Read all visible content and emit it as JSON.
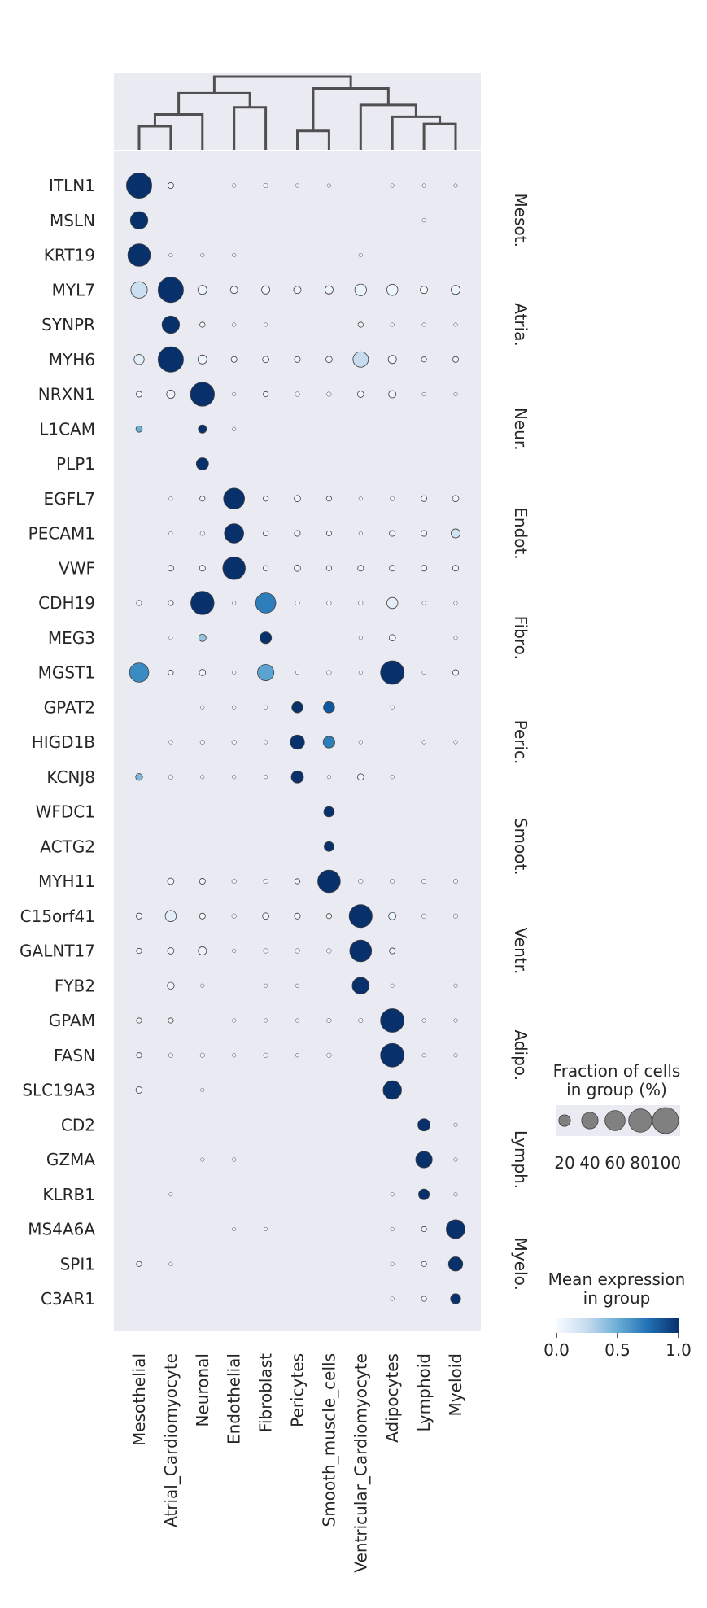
{
  "chart_data": {
    "type": "dotplot",
    "groups": [
      "Mesothelial",
      "Atrial_Cardiomyocyte",
      "Neuronal",
      "Endothelial",
      "Fibroblast",
      "Pericytes",
      "Smooth_muscle_cells",
      "Ventricular_Cardiomyocyte",
      "Adipocytes",
      "Lymphoid",
      "Myeloid"
    ],
    "genes": [
      "ITLN1",
      "MSLN",
      "KRT19",
      "MYL7",
      "SYNPR",
      "MYH6",
      "NRXN1",
      "L1CAM",
      "PLP1",
      "EGFL7",
      "PECAM1",
      "VWF",
      "CDH19",
      "MEG3",
      "MGST1",
      "GPAT2",
      "HIGD1B",
      "KCNJ8",
      "WFDC1",
      "ACTG2",
      "MYH11",
      "C15orf41",
      "GALNT17",
      "FYB2",
      "GPAM",
      "FASN",
      "SLC19A3",
      "CD2",
      "GZMA",
      "KLRB1",
      "MS4A6A",
      "SPI1",
      "C3AR1"
    ],
    "gene_groups": [
      {
        "label": "Mesot.",
        "start": 0,
        "end": 2
      },
      {
        "label": "Atria.",
        "start": 3,
        "end": 5
      },
      {
        "label": "Neur.",
        "start": 6,
        "end": 8
      },
      {
        "label": "Endot.",
        "start": 9,
        "end": 11
      },
      {
        "label": "Fibro.",
        "start": 12,
        "end": 14
      },
      {
        "label": "Peric.",
        "start": 15,
        "end": 17
      },
      {
        "label": "Smoot.",
        "start": 18,
        "end": 20
      },
      {
        "label": "Ventr.",
        "start": 21,
        "end": 23
      },
      {
        "label": "Adipo.",
        "start": 24,
        "end": 26
      },
      {
        "label": "Lymph.",
        "start": 27,
        "end": 29
      },
      {
        "label": "Myelo.",
        "start": 30,
        "end": 32
      }
    ],
    "fraction": [
      [
        95,
        5,
        0,
        2,
        3,
        2,
        2,
        0,
        2,
        2,
        2
      ],
      [
        45,
        0,
        0,
        0,
        0,
        0,
        0,
        0,
        0,
        2,
        0
      ],
      [
        75,
        2,
        2,
        2,
        0,
        0,
        0,
        2,
        0,
        0,
        0
      ],
      [
        40,
        95,
        12,
        8,
        10,
        8,
        10,
        20,
        18,
        8,
        12
      ],
      [
        0,
        45,
        4,
        2,
        2,
        0,
        0,
        4,
        2,
        2,
        2
      ],
      [
        15,
        95,
        12,
        5,
        6,
        5,
        6,
        35,
        10,
        4,
        5
      ],
      [
        5,
        10,
        85,
        2,
        4,
        3,
        3,
        6,
        8,
        2,
        2
      ],
      [
        6,
        0,
        10,
        2,
        0,
        0,
        0,
        0,
        0,
        0,
        0
      ],
      [
        0,
        0,
        22,
        0,
        0,
        0,
        0,
        0,
        0,
        0,
        0
      ],
      [
        0,
        2,
        4,
        65,
        4,
        6,
        4,
        2,
        3,
        5,
        6
      ],
      [
        0,
        2,
        3,
        55,
        4,
        5,
        4,
        2,
        5,
        5,
        12
      ],
      [
        0,
        5,
        5,
        75,
        4,
        6,
        4,
        5,
        5,
        5,
        5
      ],
      [
        4,
        4,
        80,
        2,
        60,
        3,
        3,
        3,
        18,
        2,
        2
      ],
      [
        0,
        2,
        8,
        0,
        20,
        0,
        0,
        2,
        6,
        0,
        2
      ],
      [
        55,
        4,
        6,
        2,
        40,
        2,
        3,
        2,
        82,
        2,
        5
      ],
      [
        0,
        0,
        2,
        2,
        2,
        18,
        18,
        0,
        2,
        0,
        0
      ],
      [
        0,
        2,
        3,
        3,
        2,
        30,
        20,
        2,
        0,
        2,
        2
      ],
      [
        7,
        3,
        2,
        2,
        2,
        22,
        2,
        6,
        2,
        0,
        0
      ],
      [
        0,
        0,
        0,
        0,
        0,
        0,
        16,
        0,
        0,
        0,
        0
      ],
      [
        0,
        0,
        0,
        0,
        0,
        0,
        14,
        0,
        0,
        0,
        0
      ],
      [
        0,
        6,
        5,
        3,
        3,
        4,
        75,
        3,
        3,
        3,
        3
      ],
      [
        5,
        18,
        5,
        3,
        6,
        5,
        4,
        78,
        8,
        3,
        3
      ],
      [
        4,
        6,
        10,
        2,
        3,
        3,
        3,
        70,
        5,
        0,
        0
      ],
      [
        0,
        7,
        2,
        0,
        2,
        2,
        0,
        42,
        2,
        0,
        2
      ],
      [
        4,
        4,
        0,
        2,
        2,
        2,
        3,
        3,
        82,
        2,
        2
      ],
      [
        4,
        3,
        3,
        2,
        3,
        2,
        3,
        0,
        82,
        2,
        2
      ],
      [
        6,
        0,
        2,
        0,
        0,
        0,
        0,
        0,
        50,
        0,
        0
      ],
      [
        0,
        0,
        0,
        0,
        0,
        0,
        0,
        0,
        0,
        22,
        2
      ],
      [
        0,
        0,
        2,
        2,
        0,
        0,
        0,
        0,
        0,
        40,
        2
      ],
      [
        0,
        2,
        0,
        0,
        0,
        0,
        0,
        0,
        2,
        17,
        2
      ],
      [
        0,
        0,
        0,
        2,
        2,
        0,
        0,
        0,
        2,
        4,
        52
      ],
      [
        4,
        2,
        0,
        0,
        0,
        0,
        0,
        0,
        2,
        4,
        30
      ],
      [
        0,
        0,
        0,
        0,
        0,
        0,
        0,
        0,
        2,
        4,
        15
      ]
    ],
    "expression": [
      [
        1.0,
        0.05,
        0,
        0.05,
        0.05,
        0.05,
        0.05,
        0,
        0.05,
        0.05,
        0.05
      ],
      [
        1.0,
        0,
        0,
        0,
        0,
        0,
        0,
        0,
        0,
        0.05,
        0
      ],
      [
        1.0,
        0.05,
        0.05,
        0.05,
        0,
        0,
        0,
        0.05,
        0,
        0,
        0
      ],
      [
        0.22,
        1.0,
        0.05,
        0.05,
        0.05,
        0.05,
        0.05,
        0.06,
        0.05,
        0.03,
        0.05
      ],
      [
        0,
        1.0,
        0.05,
        0.05,
        0.05,
        0,
        0,
        0.05,
        0.05,
        0.05,
        0.05
      ],
      [
        0.1,
        1.0,
        0.05,
        0.05,
        0.05,
        0.05,
        0.05,
        0.25,
        0.05,
        0.05,
        0.05
      ],
      [
        0.05,
        0.05,
        1.0,
        0.05,
        0.05,
        0.05,
        0.05,
        0.05,
        0.05,
        0.05,
        0.05
      ],
      [
        0.5,
        0,
        1.0,
        0.05,
        0,
        0,
        0,
        0,
        0,
        0,
        0
      ],
      [
        0,
        0,
        1.0,
        0,
        0,
        0,
        0,
        0,
        0,
        0,
        0
      ],
      [
        0,
        0.05,
        0.05,
        1.0,
        0.05,
        0.05,
        0.05,
        0.05,
        0.05,
        0.05,
        0.05
      ],
      [
        0,
        0.05,
        0.05,
        1.0,
        0.05,
        0.05,
        0.05,
        0.05,
        0.05,
        0.05,
        0.2
      ],
      [
        0,
        0.05,
        0.05,
        1.0,
        0.05,
        0.05,
        0.05,
        0.05,
        0.05,
        0.05,
        0.05
      ],
      [
        0.05,
        0.05,
        1.0,
        0.05,
        0.7,
        0.05,
        0.05,
        0.05,
        0.1,
        0.05,
        0.05
      ],
      [
        0,
        0.05,
        0.4,
        0,
        1.0,
        0,
        0,
        0.05,
        0.05,
        0,
        0.05
      ],
      [
        0.65,
        0.05,
        0.05,
        0.05,
        0.55,
        0.05,
        0.05,
        0.05,
        1.0,
        0.05,
        0.05
      ],
      [
        0,
        0,
        0.05,
        0.05,
        0.05,
        1.0,
        0.85,
        0,
        0.05,
        0,
        0
      ],
      [
        0,
        0.05,
        0.05,
        0.05,
        0.05,
        1.0,
        0.7,
        0.05,
        0,
        0.05,
        0.05
      ],
      [
        0.45,
        0.05,
        0.05,
        0.05,
        0.05,
        1.0,
        0.05,
        0.05,
        0.05,
        0,
        0
      ],
      [
        0,
        0,
        0,
        0,
        0,
        0,
        1.0,
        0,
        0,
        0,
        0
      ],
      [
        0,
        0,
        0,
        0,
        0,
        0,
        1.0,
        0,
        0,
        0,
        0
      ],
      [
        0,
        0.05,
        0.05,
        0.05,
        0.05,
        0.05,
        1.0,
        0.05,
        0.05,
        0.05,
        0.05
      ],
      [
        0.05,
        0.1,
        0.05,
        0.05,
        0.05,
        0.05,
        0.05,
        1.0,
        0.05,
        0.05,
        0.05
      ],
      [
        0.05,
        0.05,
        0.05,
        0.05,
        0.05,
        0.05,
        0.05,
        1.0,
        0.05,
        0,
        0
      ],
      [
        0,
        0.05,
        0.05,
        0,
        0.05,
        0.05,
        0,
        1.0,
        0.05,
        0,
        0.05
      ],
      [
        0.05,
        0.05,
        0,
        0.05,
        0.05,
        0.05,
        0.05,
        0.05,
        1.0,
        0.05,
        0.05
      ],
      [
        0.05,
        0.05,
        0.05,
        0.05,
        0.05,
        0.05,
        0.05,
        0,
        1.0,
        0.05,
        0.05
      ],
      [
        0.05,
        0,
        0.05,
        0,
        0,
        0,
        0,
        0,
        1.0,
        0,
        0
      ],
      [
        0,
        0,
        0,
        0,
        0,
        0,
        0,
        0,
        0,
        1.0,
        0.05
      ],
      [
        0,
        0,
        0.05,
        0.05,
        0,
        0,
        0,
        0,
        0,
        1.0,
        0.05
      ],
      [
        0,
        0.05,
        0,
        0,
        0,
        0,
        0,
        0,
        0.05,
        1.0,
        0.05
      ],
      [
        0,
        0,
        0,
        0.05,
        0.05,
        0,
        0,
        0,
        0.05,
        0.05,
        1.0
      ],
      [
        0.05,
        0.05,
        0,
        0,
        0,
        0,
        0,
        0,
        0.05,
        0.05,
        1.0
      ],
      [
        0,
        0,
        0,
        0,
        0,
        0,
        0,
        0,
        0.05,
        0.05,
        1.0
      ]
    ],
    "dendrogram": [
      {
        "a": 0,
        "b": 1,
        "h": 1.0
      },
      {
        "a": 0.5,
        "b": 2,
        "h": 1.5
      },
      {
        "a": 3,
        "b": 4,
        "h": 1.8
      },
      {
        "a": 1.25,
        "b": 3.5,
        "h": 2.4
      },
      {
        "a": 5,
        "b": 6,
        "h": 0.8
      },
      {
        "a": 9,
        "b": 10,
        "h": 1.1
      },
      {
        "a": 8,
        "b": 9.5,
        "h": 1.4
      },
      {
        "a": 7,
        "b": 8.75,
        "h": 1.9
      },
      {
        "a": 5.5,
        "b": 7.875,
        "h": 2.6
      },
      {
        "a": 2.375,
        "b": 6.6875,
        "h": 3.1
      }
    ],
    "size_legend": {
      "title_line1": "Fraction of cells",
      "title_line2": "in group (%)",
      "values": [
        20,
        40,
        60,
        80,
        100
      ],
      "labels": [
        "20",
        "40",
        "60",
        "80",
        "100"
      ]
    },
    "color_legend": {
      "title_line1": "Mean expression",
      "title_line2": "in group",
      "ticks": [
        0.0,
        0.5,
        1.0
      ],
      "tick_labels": [
        "0.0",
        "0.5",
        "1.0"
      ],
      "colormap": "Blues"
    },
    "colors": {
      "panel_bg": "#eaeaf2",
      "dendro_line": "#505050",
      "dot_edge": "#404040",
      "legend_dot": "#808080"
    }
  }
}
